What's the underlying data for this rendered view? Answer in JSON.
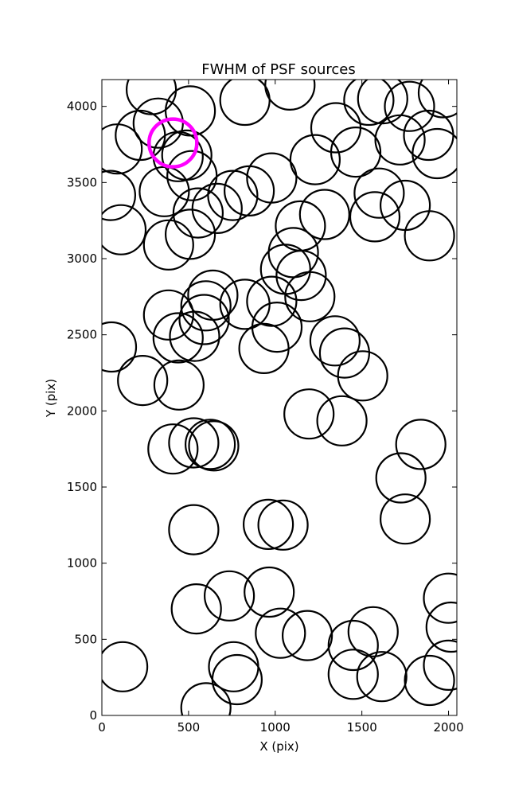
{
  "chart_data": {
    "type": "scatter",
    "title": "FWHM of PSF sources",
    "xlabel": "X (pix)",
    "ylabel": "Y (pix)",
    "xlim": [
      0,
      2048
    ],
    "ylim": [
      0,
      4176
    ],
    "xticks": [
      0,
      500,
      1000,
      1500,
      2000
    ],
    "yticks": [
      0,
      500,
      1000,
      1500,
      2000,
      2500,
      3000,
      3500,
      4000
    ],
    "marker": "circle",
    "source_color": "#000000",
    "highlight_color": "#ff00ff",
    "grid": false,
    "series": [
      {
        "points": [
          [
            285,
            4110
          ],
          [
            325,
            3890
          ],
          [
            222,
            3810
          ],
          [
            88,
            3720
          ],
          [
            50,
            3415
          ],
          [
            110,
            3190
          ],
          [
            510,
            3970
          ],
          [
            490,
            3680
          ],
          [
            440,
            3670
          ],
          [
            520,
            3545
          ],
          [
            360,
            3440
          ],
          [
            385,
            3090
          ],
          [
            555,
            3300
          ],
          [
            510,
            3160
          ],
          [
            665,
            3330
          ],
          [
            755,
            3415
          ],
          [
            850,
            3445
          ],
          [
            980,
            3530
          ],
          [
            825,
            4040
          ],
          [
            1085,
            4140
          ],
          [
            1540,
            4040
          ],
          [
            1620,
            4050
          ],
          [
            1775,
            4000
          ],
          [
            1970,
            4090
          ],
          [
            1350,
            3860
          ],
          [
            1465,
            3700
          ],
          [
            1720,
            3780
          ],
          [
            1885,
            3810
          ],
          [
            1935,
            3690
          ],
          [
            1230,
            3650
          ],
          [
            1600,
            3430
          ],
          [
            1575,
            3275
          ],
          [
            1750,
            3350
          ],
          [
            1890,
            3150
          ],
          [
            1145,
            3215
          ],
          [
            1285,
            3290
          ],
          [
            1105,
            3040
          ],
          [
            1060,
            2930
          ],
          [
            1150,
            2890
          ],
          [
            1200,
            2750
          ],
          [
            980,
            2720
          ],
          [
            1010,
            2550
          ],
          [
            935,
            2410
          ],
          [
            825,
            2700
          ],
          [
            640,
            2760
          ],
          [
            600,
            2690
          ],
          [
            590,
            2600
          ],
          [
            535,
            2490
          ],
          [
            440,
            2480
          ],
          [
            385,
            2630
          ],
          [
            55,
            2420
          ],
          [
            235,
            2200
          ],
          [
            445,
            2170
          ],
          [
            1345,
            2460
          ],
          [
            1400,
            2380
          ],
          [
            1505,
            2230
          ],
          [
            1195,
            1980
          ],
          [
            1385,
            1935
          ],
          [
            410,
            1750
          ],
          [
            530,
            1790
          ],
          [
            625,
            1780
          ],
          [
            645,
            1770
          ],
          [
            1840,
            1780
          ],
          [
            1725,
            1560
          ],
          [
            1750,
            1290
          ],
          [
            530,
            1220
          ],
          [
            960,
            1255
          ],
          [
            1045,
            1250
          ],
          [
            545,
            700
          ],
          [
            735,
            785
          ],
          [
            965,
            810
          ],
          [
            1030,
            540
          ],
          [
            1185,
            525
          ],
          [
            1450,
            460
          ],
          [
            1565,
            550
          ],
          [
            1450,
            270
          ],
          [
            1615,
            255
          ],
          [
            1890,
            230
          ],
          [
            2000,
            770
          ],
          [
            2015,
            580
          ],
          [
            2000,
            330
          ],
          [
            120,
            320
          ],
          [
            760,
            320
          ],
          [
            780,
            235
          ],
          [
            600,
            50
          ]
        ]
      },
      {
        "points": [
          [
            410,
            3760
          ]
        ],
        "highlight": true
      }
    ]
  }
}
